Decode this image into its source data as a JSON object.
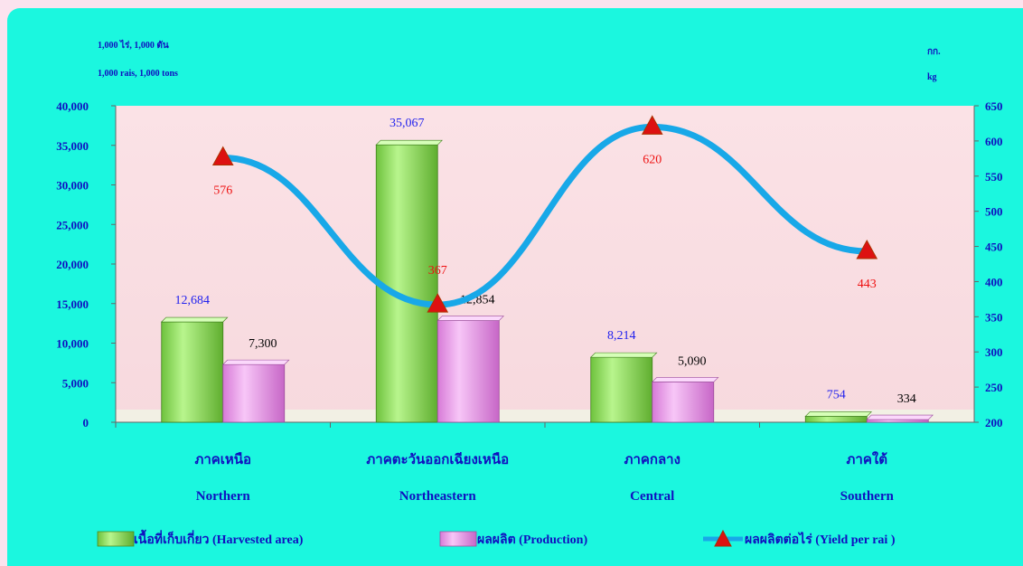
{
  "chart_data": {
    "type": "bar",
    "units": {
      "left_th": "1,000 ไร่,  1,000 ตัน",
      "left_en": "1,000 rais,  1,000 tons",
      "right_th": "กก.",
      "right_en": "kg"
    },
    "categories": [
      {
        "th": "ภาคเหนือ",
        "en": "Northern"
      },
      {
        "th": "ภาคตะวันออกเฉียงเหนือ",
        "en": "Northeastern"
      },
      {
        "th": "ภาคกลาง",
        "en": "Central"
      },
      {
        "th": "ภาคใต้",
        "en": "Southern"
      }
    ],
    "series": [
      {
        "name": "เนื้อที่เก็บเกี่ยว  (Harvested area)",
        "type": "bar",
        "axis": "left",
        "values": [
          12684,
          35067,
          8214,
          754
        ],
        "labels": [
          "12,684",
          "35,067",
          "8,214",
          "754"
        ],
        "color": "#8fe05a",
        "label_color": "#2222ee"
      },
      {
        "name": "ผลผลิต  (Production)",
        "type": "bar",
        "axis": "left",
        "values": [
          7300,
          12854,
          5090,
          334
        ],
        "labels": [
          "7,300",
          "12,854",
          "5,090",
          "334"
        ],
        "color": "#ee99ee",
        "label_color": "#000000"
      },
      {
        "name": "ผลผลิตต่อไร่ (Yield per rai )",
        "type": "line",
        "axis": "right",
        "values": [
          576,
          367,
          620,
          443
        ],
        "labels": [
          "576",
          "367",
          "620",
          "443"
        ],
        "color": "#18a8e8",
        "marker_color": "#dd1111",
        "label_color": "#ee1111"
      }
    ],
    "y_left": {
      "min": 0,
      "max": 40000,
      "step": 5000,
      "ticks": [
        "0",
        "5,000",
        "10,000",
        "15,000",
        "20,000",
        "25,000",
        "30,000",
        "35,000",
        "40,000"
      ]
    },
    "y_right": {
      "min": 200,
      "max": 650,
      "step": 50,
      "ticks": [
        "200",
        "250",
        "300",
        "350",
        "400",
        "450",
        "500",
        "550",
        "600",
        "650"
      ]
    },
    "grid": false,
    "legend_position": "bottom"
  }
}
